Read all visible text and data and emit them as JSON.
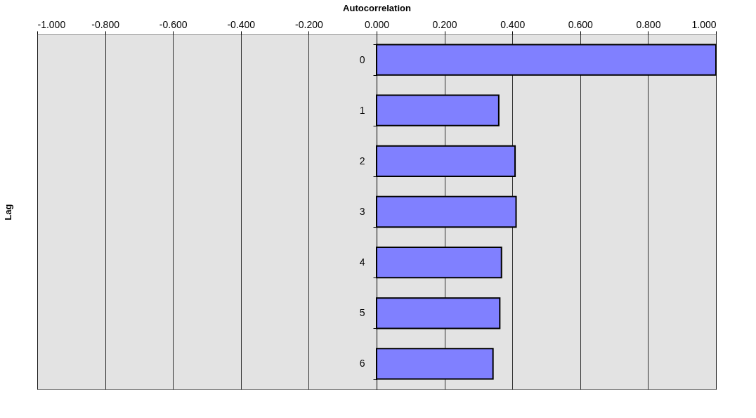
{
  "chart_data": {
    "type": "bar",
    "orientation": "horizontal",
    "xlabel": "Autocorrelation",
    "ylabel": "Lag",
    "categories": [
      "0",
      "1",
      "2",
      "3",
      "4",
      "5",
      "6"
    ],
    "series": [
      {
        "color": "#8080ff",
        "values": [
          1.0,
          0.36,
          0.408,
          0.411,
          0.368,
          0.363,
          0.343
        ]
      }
    ],
    "xlim": [
      -1.0,
      1.0
    ],
    "xticks": [
      {
        "value": -1.0,
        "label": "-1.000"
      },
      {
        "value": -0.8,
        "label": "-0.800"
      },
      {
        "value": -0.6,
        "label": "-0.600"
      },
      {
        "value": -0.4,
        "label": "-0.400"
      },
      {
        "value": -0.2,
        "label": "-0.200"
      },
      {
        "value": 0.0,
        "label": "0.000"
      },
      {
        "value": 0.2,
        "label": "0.200"
      },
      {
        "value": 0.4,
        "label": "0.400"
      },
      {
        "value": 0.6,
        "label": "0.600"
      },
      {
        "value": 0.8,
        "label": "0.800"
      },
      {
        "value": 1.0,
        "label": "1.000"
      }
    ],
    "grid": "x",
    "legend": false
  }
}
